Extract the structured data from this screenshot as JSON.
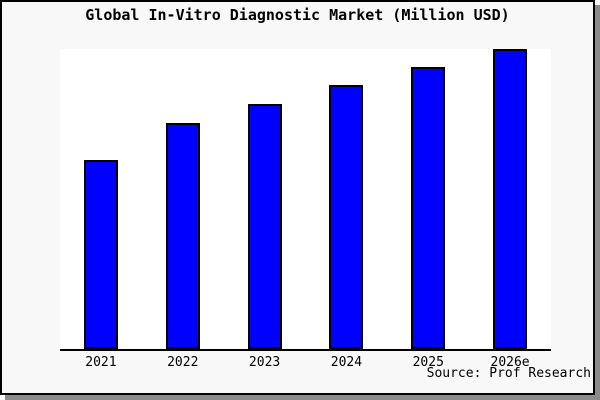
{
  "window": {
    "background_color": "#f8f8f8",
    "border_color": "#000000",
    "shadow_color": "#8a8a8a",
    "plot_background_color": "#ffffff"
  },
  "chart_data": {
    "type": "bar",
    "title": "Global In-Vitro Diagnostic Market (Million USD)",
    "categories": [
      "2021",
      "2022",
      "2023",
      "2024",
      "2025",
      "2026e"
    ],
    "values": [
      63,
      75.3,
      81.7,
      88,
      94,
      100
    ],
    "value_note": "y-axis has no tick labels; values are relative bar heights with tallest bar (2026e) = 100",
    "xlabel": "",
    "ylabel": "",
    "ylim": [
      0,
      100
    ],
    "grid": false,
    "legend": false,
    "bar_color": "#0000ff",
    "bar_border_color": "#000000",
    "axis_color": "#000000",
    "source": "Source: Prof Research"
  }
}
